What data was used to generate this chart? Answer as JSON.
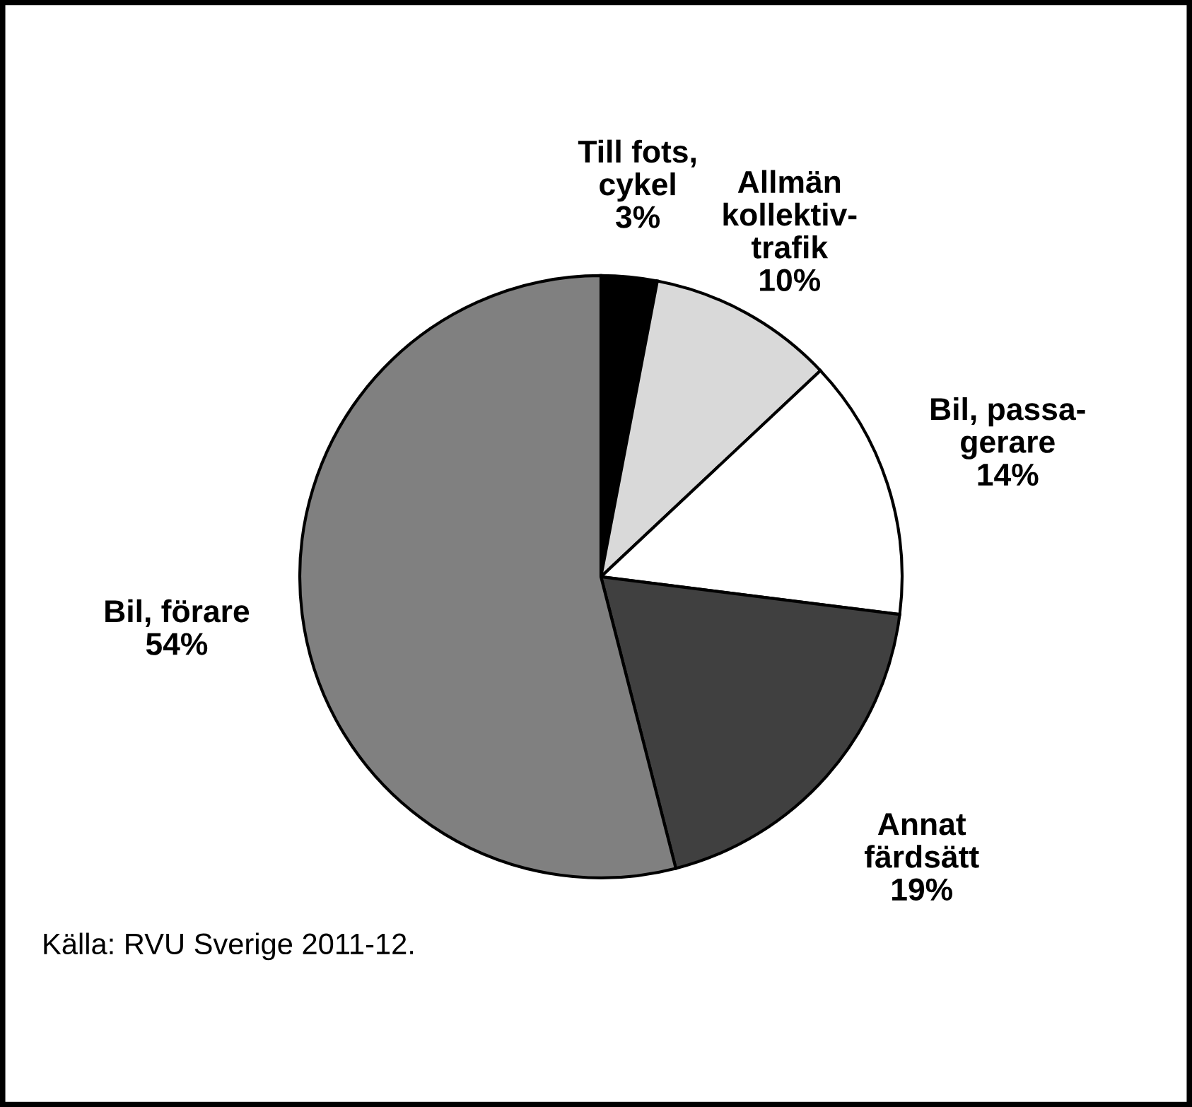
{
  "chart_data": {
    "type": "pie",
    "categories": [
      "Till fots,\ncykel",
      "Allmän\nkollektiv-\ntrafik",
      "Bil, passa-\ngerare",
      "Annat\nfärdsätt",
      "Bil, förare"
    ],
    "values": [
      3,
      10,
      14,
      19,
      54
    ],
    "value_labels": [
      "3%",
      "10%",
      "14%",
      "19%",
      "54%"
    ],
    "colors": [
      "#000000",
      "#d9d9d9",
      "#ffffff",
      "#404040",
      "#808080"
    ],
    "annotations": [
      "Källa: RVU Sverige 2011-12."
    ]
  }
}
